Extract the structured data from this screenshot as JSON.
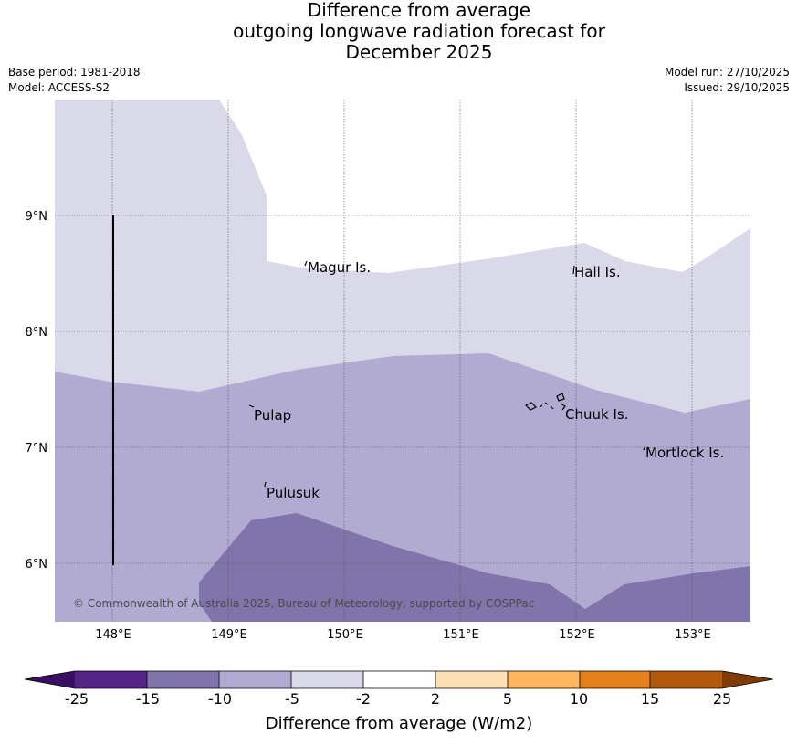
{
  "title": {
    "line1": "Difference from average",
    "line2": "outgoing longwave radiation forecast for",
    "line3": "December 2025"
  },
  "meta": {
    "base_period": "Base period: 1981-2018",
    "model": "Model: ACCESS-S2",
    "model_run": "Model run: 27/10/2025",
    "issued": "Issued: 29/10/2025"
  },
  "map": {
    "lat_ticks": [
      "9°N",
      "8°N",
      "7°N",
      "6°N"
    ],
    "lon_ticks": [
      "148°E",
      "149°E",
      "150°E",
      "151°E",
      "152°E",
      "153°E"
    ],
    "places": [
      "Magur Is.",
      "Hall Is.",
      "Pulap",
      "Chuuk Is.",
      "Mortlock Is.",
      "Pulusuk"
    ],
    "copyright": "© Commonwealth of Australia 2025, Bureau of Meteorology, supported by COSPPac",
    "fill_colors": {
      "band_minus5_to_minus2": "#d9d9ea",
      "band_minus10_to_minus5": "#b1abd2",
      "band_minus15_to_minus10": "#8174ab"
    }
  },
  "colorbar": {
    "title": "Difference from average (W/m2)",
    "labels": [
      "-25",
      "-15",
      "-10",
      "-5",
      "-2",
      "2",
      "5",
      "10",
      "15",
      "25"
    ],
    "colors": [
      "#3a0f63",
      "#542486",
      "#8174ab",
      "#b1abd2",
      "#d9d9ea",
      "#ffffff",
      "#fde0b5",
      "#fdb55f",
      "#e2811c",
      "#b35a0e",
      "#7f3b08"
    ]
  }
}
